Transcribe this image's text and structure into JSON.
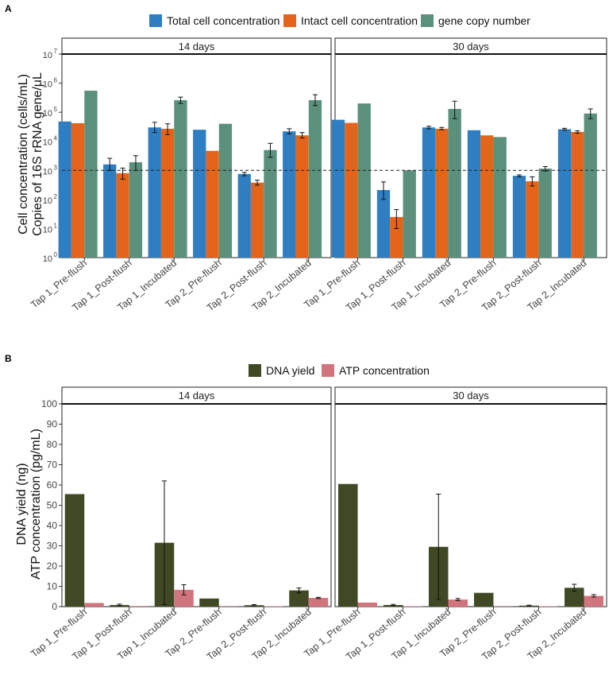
{
  "colors": {
    "total": "#2E7EC1",
    "intact": "#E46519",
    "gene": "#5A907C",
    "dna": "#3F4A24",
    "atp": "#D0747D"
  },
  "chart_data": [
    {
      "panel_label": "A",
      "type": "bar",
      "yscale": "log10",
      "ylim": [
        1,
        10000000
      ],
      "y_ticks": [
        {
          "value": 1,
          "base": "10",
          "exp": "0"
        },
        {
          "value": 10,
          "base": "10",
          "exp": "1"
        },
        {
          "value": 100,
          "base": "10",
          "exp": "2"
        },
        {
          "value": 1000,
          "base": "10",
          "exp": "3"
        },
        {
          "value": 10000,
          "base": "10",
          "exp": "4"
        },
        {
          "value": 100000,
          "base": "10",
          "exp": "5"
        },
        {
          "value": 1000000,
          "base": "10",
          "exp": "6"
        },
        {
          "value": 10000000,
          "base": "10",
          "exp": "7"
        }
      ],
      "ylabel": [
        "Cell concentration (cells/mL)",
        "Copies of 16S rRNA gene/μL"
      ],
      "legend": [
        "Total cell concentration",
        "Intact cell concentration",
        "gene copy number"
      ],
      "legend_position": "top",
      "reference_line": 1000,
      "categories": [
        "Tap 1_Pre-flush",
        "Tap 1_Post-flush",
        "Tap 1_Incubated",
        "Tap 2_Pre-flush",
        "Tap 2_Post-flush",
        "Tap 2_Incubated"
      ],
      "facets": [
        {
          "title": "14 days",
          "series": [
            {
              "name": "Total cell concentration",
              "values": [
                48000,
                1600,
                30000,
                25000,
                750,
                22000
              ],
              "errors": [
                [
                  null,
                  null
                ],
                [
                  1000,
                  2600
                ],
                [
                  20000,
                  45000
                ],
                [
                  null,
                  null
                ],
                [
                  650,
                  850
                ],
                [
                  18000,
                  27000
                ]
              ]
            },
            {
              "name": "Intact cell concentration",
              "values": [
                42000,
                800,
                27000,
                4700,
                380,
                16000
              ],
              "errors": [
                [
                  null,
                  null
                ],
                [
                  500,
                  1200
                ],
                [
                  17000,
                  40000
                ],
                [
                  null,
                  null
                ],
                [
                  310,
                  460
                ],
                [
                  13000,
                  20000
                ]
              ]
            },
            {
              "name": "gene copy number",
              "values": [
                550000,
                1900,
                260000,
                40000,
                5000,
                260000
              ],
              "errors": [
                [
                  null,
                  null
                ],
                [
                  1000,
                  3200
                ],
                [
                  200000,
                  330000
                ],
                [
                  null,
                  null
                ],
                [
                  2800,
                  8500
                ],
                [
                  170000,
                  400000
                ]
              ]
            }
          ]
        },
        {
          "title": "30 days",
          "series": [
            {
              "name": "Total cell concentration",
              "values": [
                55000,
                210,
                30000,
                24000,
                650,
                26000
              ],
              "errors": [
                [
                  null,
                  null
                ],
                [
                  100,
                  400
                ],
                [
                  27000,
                  33000
                ],
                [
                  null,
                  null
                ],
                [
                  600,
                  700
                ],
                [
                  24000,
                  28000
                ]
              ]
            },
            {
              "name": "Intact cell concentration",
              "values": [
                43000,
                25,
                27000,
                16000,
                420,
                21000
              ],
              "errors": [
                [
                  null,
                  null
                ],
                [
                  10,
                  45
                ],
                [
                  25000,
                  30000
                ],
                [
                  null,
                  null
                ],
                [
                  290,
                  600
                ],
                [
                  19000,
                  23000
                ]
              ]
            },
            {
              "name": "gene copy number",
              "values": [
                200000,
                1000,
                130000,
                14000,
                1150,
                90000
              ],
              "errors": [
                [
                  null,
                  null
                ],
                [
                  null,
                  null
                ],
                [
                  60000,
                  240000
                ],
                [
                  null,
                  null
                ],
                [
                  950,
                  1350
                ],
                [
                  60000,
                  130000
                ]
              ]
            }
          ]
        }
      ]
    },
    {
      "panel_label": "B",
      "type": "bar",
      "yscale": "linear",
      "ylim": [
        0,
        100
      ],
      "y_ticks": [
        0,
        10,
        20,
        30,
        40,
        50,
        60,
        70,
        80,
        90,
        100
      ],
      "ylabel": [
        "DNA yield (ng)",
        "ATP concentration (pg/mL)"
      ],
      "legend": [
        "DNA yield",
        "ATP concentration"
      ],
      "legend_position": "top",
      "categories": [
        "Tap 1_Pre-flush",
        "Tap 1_Post-flush",
        "Tap 1_Incubated",
        "Tap 2_Pre-flush",
        "Tap 2_Post-flush",
        "Tap 2_Incubated"
      ],
      "facets": [
        {
          "title": "14 days",
          "series": [
            {
              "name": "DNA yield",
              "values": [
                55.5,
                0.8,
                31.5,
                4,
                0.7,
                8
              ],
              "errors": [
                [
                  null,
                  null
                ],
                [
                  0.4,
                  1.2
                ],
                [
                  1,
                  62
                ],
                [
                  null,
                  null
                ],
                [
                  0.4,
                  1
                ],
                [
                  6.8,
                  9.2
                ]
              ]
            },
            {
              "name": "ATP concentration",
              "values": [
                1.8,
                0.3,
                8.3,
                0.1,
                0.2,
                4.3
              ],
              "errors": [
                [
                  null,
                  null
                ],
                [
                  null,
                  null
                ],
                [
                  5.8,
                  10.8
                ],
                [
                  null,
                  null
                ],
                [
                  null,
                  null
                ],
                [
                  4,
                  4.6
                ]
              ]
            }
          ]
        },
        {
          "title": "30 days",
          "series": [
            {
              "name": "DNA yield",
              "values": [
                60.5,
                0.8,
                29.5,
                6.8,
                0.5,
                9.3
              ],
              "errors": [
                [
                  null,
                  null
                ],
                [
                  0.5,
                  1.1
                ],
                [
                  3.5,
                  55.5
                ],
                [
                  null,
                  null
                ],
                [
                  0.3,
                  0.7
                ],
                [
                  7.6,
                  11
                ]
              ]
            },
            {
              "name": "ATP concentration",
              "values": [
                2,
                0.2,
                3.5,
                0.1,
                0.2,
                5.3
              ],
              "errors": [
                [
                  null,
                  null
                ],
                [
                  null,
                  null
                ],
                [
                  3,
                  4
                ],
                [
                  null,
                  null
                ],
                [
                  null,
                  null
                ],
                [
                  4.7,
                  5.9
                ]
              ]
            }
          ]
        }
      ]
    }
  ]
}
